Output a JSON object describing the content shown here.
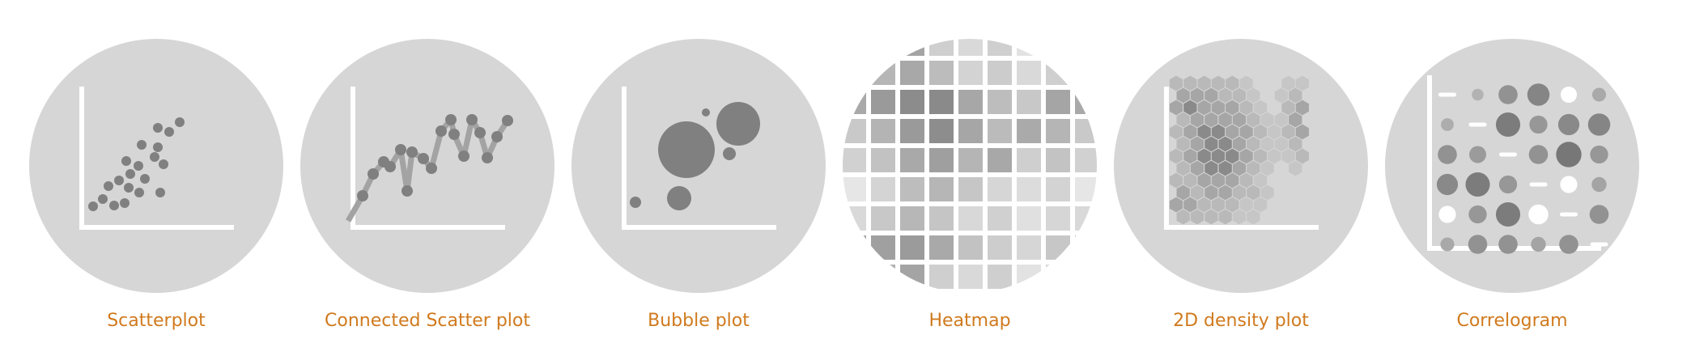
{
  "gallery": {
    "accent_color": "#d07a1e",
    "items": [
      {
        "label": "Scatterplot",
        "icon": "scatterplot-icon"
      },
      {
        "label": "Connected Scatter plot",
        "icon": "connected-scatter-icon"
      },
      {
        "label": "Bubble plot",
        "icon": "bubble-plot-icon"
      },
      {
        "label": "Heatmap",
        "icon": "heatmap-icon"
      },
      {
        "label": "2D density plot",
        "icon": "density-plot-icon"
      },
      {
        "label": "Correlogram",
        "icon": "correlogram-icon"
      }
    ]
  }
}
